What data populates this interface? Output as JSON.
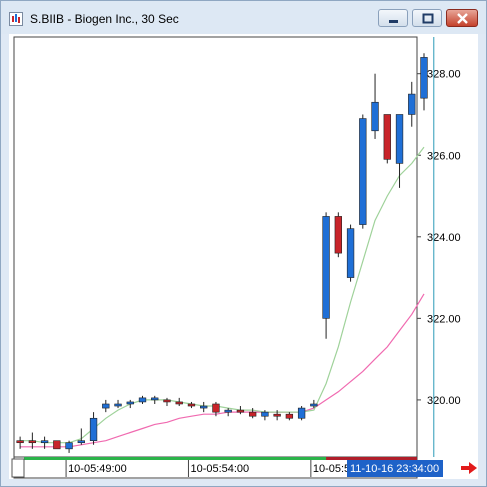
{
  "window": {
    "title": "S.BIIB - Biogen Inc., 30 Sec",
    "buttons": [
      "minimize-button",
      "maximize-button",
      "close-button"
    ]
  },
  "chart_data": {
    "type": "candlestick",
    "title": "",
    "ylim": [
      318.6,
      328.9
    ],
    "yticks": [
      320,
      322,
      324,
      326,
      328
    ],
    "ytick_labels": [
      "320.00",
      "322.00",
      "324.00",
      "326.00",
      "328.00"
    ],
    "x_tick_labels": [
      "10-05:49:00",
      "10-05:54:00",
      "10-05:59:00"
    ],
    "x_tick_index": [
      4,
      14,
      24
    ],
    "crosshair_label": "11-10-16 23:34:00",
    "crosshair_index": 34,
    "colors": {
      "up": "#1f6fd6",
      "down": "#c8242a",
      "sma_fast": "#9fd29a",
      "sma_slow": "#f06ab0",
      "crosshair": "#2a9ab8"
    },
    "candles": [
      {
        "o": 319.0,
        "h": 319.1,
        "l": 318.8,
        "c": 318.95
      },
      {
        "o": 319.0,
        "h": 319.2,
        "l": 318.8,
        "c": 318.95
      },
      {
        "o": 318.95,
        "h": 319.1,
        "l": 318.8,
        "c": 319.0
      },
      {
        "o": 319.0,
        "h": 319.0,
        "l": 318.8,
        "c": 318.8
      },
      {
        "o": 318.8,
        "h": 319.0,
        "l": 318.7,
        "c": 318.95
      },
      {
        "o": 318.95,
        "h": 319.3,
        "l": 318.9,
        "c": 319.0
      },
      {
        "o": 319.0,
        "h": 319.7,
        "l": 318.9,
        "c": 319.55
      },
      {
        "o": 319.8,
        "h": 320.0,
        "l": 319.7,
        "c": 319.9
      },
      {
        "o": 319.85,
        "h": 320.0,
        "l": 319.8,
        "c": 319.9
      },
      {
        "o": 319.9,
        "h": 320.0,
        "l": 319.8,
        "c": 319.95
      },
      {
        "o": 319.95,
        "h": 320.1,
        "l": 319.9,
        "c": 320.05
      },
      {
        "o": 320.0,
        "h": 320.1,
        "l": 319.9,
        "c": 320.05
      },
      {
        "o": 320.0,
        "h": 320.05,
        "l": 319.85,
        "c": 319.95
      },
      {
        "o": 319.95,
        "h": 320.05,
        "l": 319.85,
        "c": 319.9
      },
      {
        "o": 319.9,
        "h": 319.95,
        "l": 319.8,
        "c": 319.85
      },
      {
        "o": 319.8,
        "h": 319.95,
        "l": 319.7,
        "c": 319.85
      },
      {
        "o": 319.9,
        "h": 319.95,
        "l": 319.6,
        "c": 319.7
      },
      {
        "o": 319.7,
        "h": 319.8,
        "l": 319.6,
        "c": 319.75
      },
      {
        "o": 319.75,
        "h": 319.85,
        "l": 319.65,
        "c": 319.7
      },
      {
        "o": 319.7,
        "h": 319.8,
        "l": 319.55,
        "c": 319.6
      },
      {
        "o": 319.6,
        "h": 319.75,
        "l": 319.5,
        "c": 319.7
      },
      {
        "o": 319.65,
        "h": 319.75,
        "l": 319.5,
        "c": 319.6
      },
      {
        "o": 319.65,
        "h": 319.7,
        "l": 319.5,
        "c": 319.55
      },
      {
        "o": 319.55,
        "h": 319.85,
        "l": 319.5,
        "c": 319.8
      },
      {
        "o": 319.85,
        "h": 320.0,
        "l": 319.8,
        "c": 319.9
      },
      {
        "o": 322.0,
        "h": 324.6,
        "l": 321.5,
        "c": 324.5
      },
      {
        "o": 324.5,
        "h": 324.6,
        "l": 323.5,
        "c": 323.6
      },
      {
        "o": 323.0,
        "h": 324.3,
        "l": 322.9,
        "c": 324.2
      },
      {
        "o": 324.3,
        "h": 327.0,
        "l": 324.2,
        "c": 326.9
      },
      {
        "o": 326.6,
        "h": 328.0,
        "l": 326.4,
        "c": 327.3
      },
      {
        "o": 327.0,
        "h": 327.0,
        "l": 325.8,
        "c": 325.9
      },
      {
        "o": 325.8,
        "h": 327.0,
        "l": 325.2,
        "c": 327.0
      },
      {
        "o": 327.0,
        "h": 327.8,
        "l": 326.7,
        "c": 327.5
      },
      {
        "o": 327.4,
        "h": 328.5,
        "l": 327.1,
        "c": 328.4
      }
    ],
    "sma_fast": [
      319.0,
      319.0,
      318.95,
      318.95,
      318.95,
      319.05,
      319.3,
      319.55,
      319.75,
      319.9,
      320.0,
      320.0,
      320.0,
      319.95,
      319.9,
      319.85,
      319.85,
      319.8,
      319.75,
      319.75,
      319.7,
      319.7,
      319.7,
      319.7,
      319.75,
      320.4,
      321.3,
      322.4,
      323.4,
      324.4,
      325.0,
      325.5,
      325.8,
      326.2
    ],
    "sma_slow": [
      318.85,
      318.85,
      318.85,
      318.85,
      318.85,
      318.9,
      318.95,
      319.0,
      319.1,
      319.2,
      319.3,
      319.4,
      319.45,
      319.55,
      319.6,
      319.65,
      319.65,
      319.7,
      319.7,
      319.7,
      319.7,
      319.7,
      319.7,
      319.7,
      319.8,
      320.0,
      320.2,
      320.45,
      320.7,
      321.0,
      321.3,
      321.7,
      322.1,
      322.6
    ]
  }
}
